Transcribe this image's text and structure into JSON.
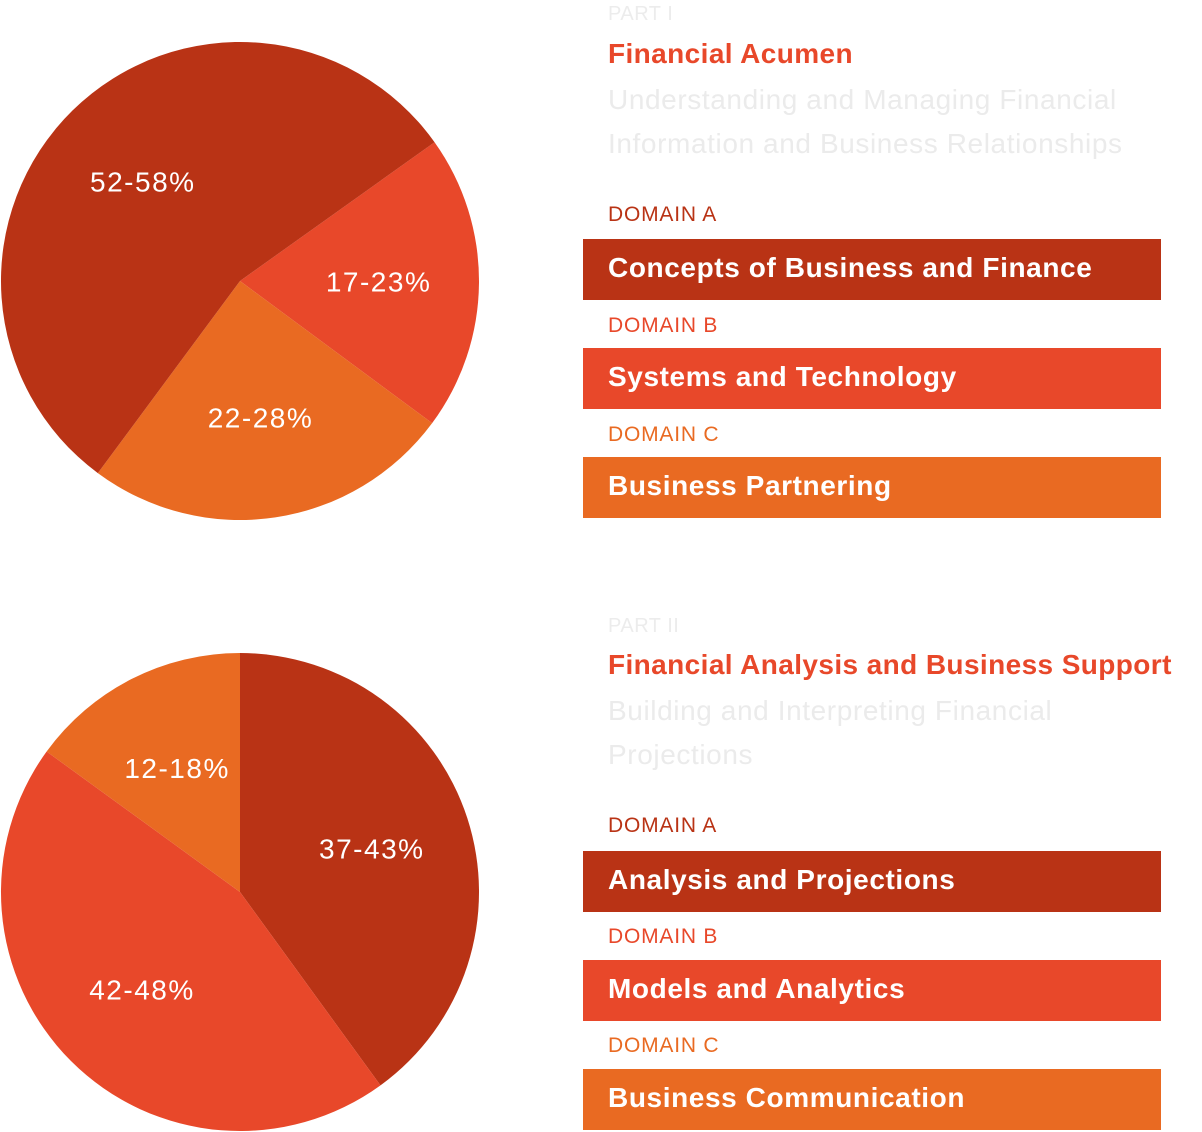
{
  "colors": {
    "dark_red": "#b93315",
    "red": "#e8482a",
    "orange": "#e96a22",
    "faint_gray": "#ececec"
  },
  "chart_data": [
    {
      "type": "pie",
      "title": "Financial Acumen",
      "slices": [
        {
          "label": "17-23%",
          "value": 20,
          "color": "#e8482a"
        },
        {
          "label": "22-28%",
          "value": 25,
          "color": "#e96a22"
        },
        {
          "label": "52-58%",
          "value": 55,
          "color": "#b93315"
        }
      ]
    },
    {
      "type": "pie",
      "title": "Financial Analysis and Business Support",
      "slices": [
        {
          "label": "37-43%",
          "value": 40,
          "color": "#b93315"
        },
        {
          "label": "42-48%",
          "value": 45,
          "color": "#e8482a"
        },
        {
          "label": "12-18%",
          "value": 15,
          "color": "#e96a22"
        }
      ]
    }
  ],
  "parts": [
    {
      "part_label": "PART I",
      "title": "Financial Acumen",
      "subtitle": "Understanding and Managing Financial Information and Business Relationships",
      "domains": [
        {
          "label": "DOMAIN A",
          "name": "Concepts of Business and Finance",
          "color": "#b93315"
        },
        {
          "label": "DOMAIN B",
          "name": "Systems and Technology",
          "color": "#e8482a"
        },
        {
          "label": "DOMAIN C",
          "name": "Business Partnering",
          "color": "#e96a22"
        }
      ]
    },
    {
      "part_label": "PART II",
      "title": "Financial Analysis and Business Support",
      "subtitle": "Building and Interpreting Financial Projections",
      "domains": [
        {
          "label": "DOMAIN A",
          "name": "Analysis and Projections",
          "color": "#b93315"
        },
        {
          "label": "DOMAIN B",
          "name": "Models and Analytics",
          "color": "#e8482a"
        },
        {
          "label": "DOMAIN C",
          "name": "Business Communication",
          "color": "#e96a22"
        }
      ]
    }
  ]
}
